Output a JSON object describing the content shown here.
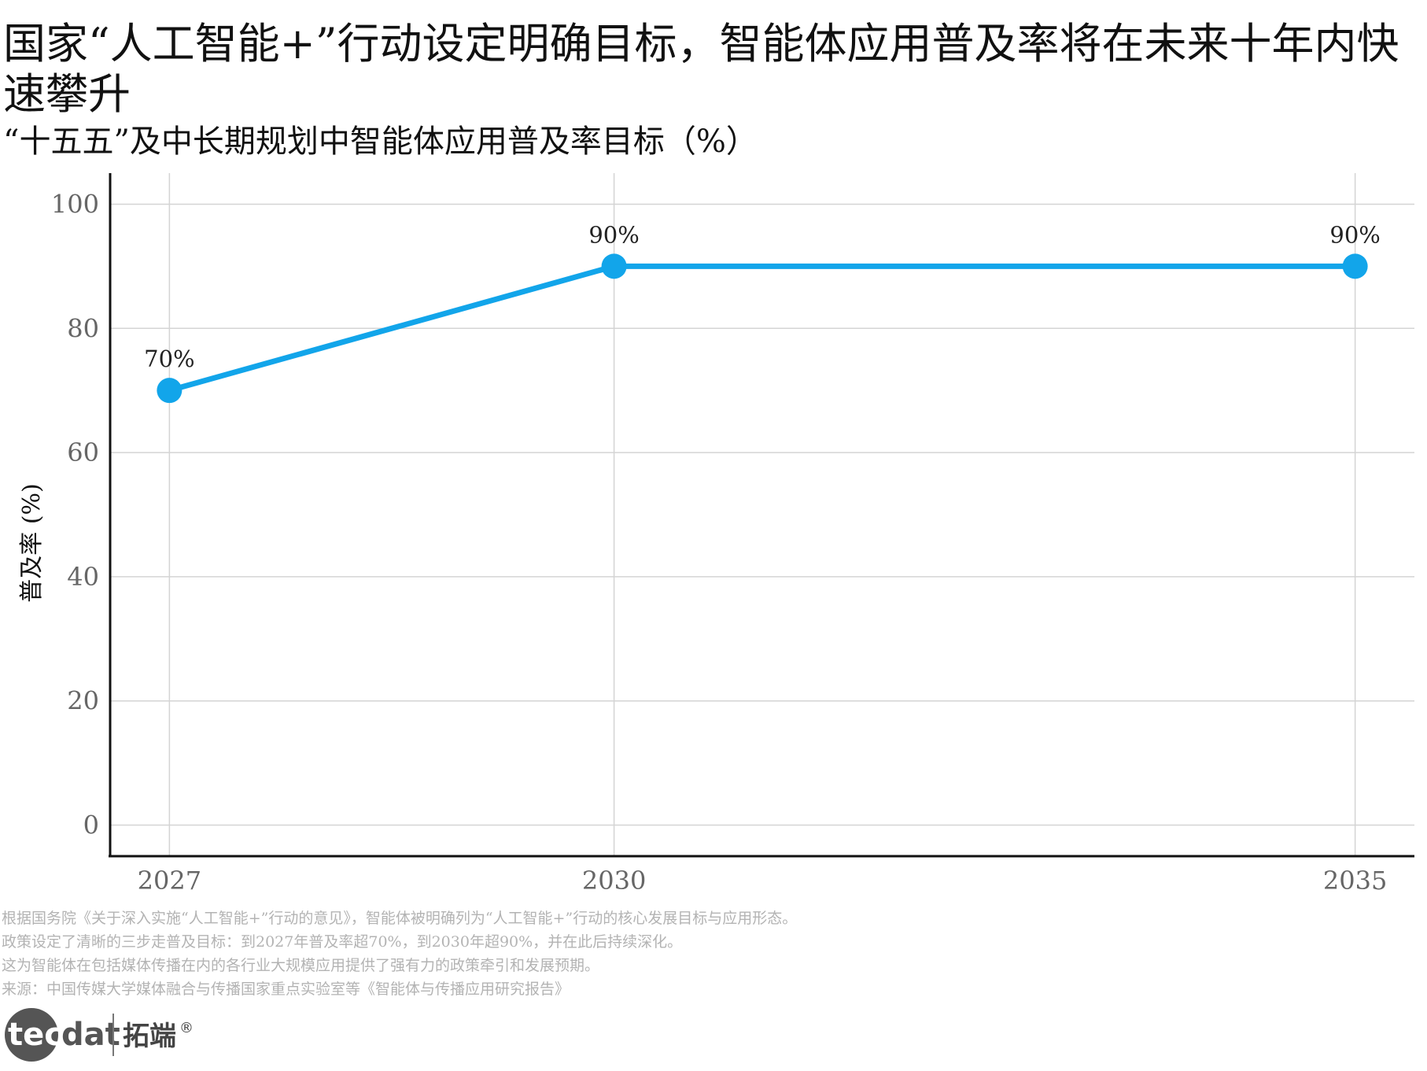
{
  "title": "国家“人工智能+”行动设定明确目标，智能体应用普及率将在未来十年内快速攀升",
  "subtitle": "“十五五”及中长期规划中智能体应用普及率目标（%）",
  "chart_data": {
    "type": "line",
    "title": "“十五五”及中长期规划中智能体应用普及率目标（%）",
    "xlabel": "",
    "ylabel": "普及率 (%)",
    "x": [
      "2027",
      "2030",
      "2035"
    ],
    "x_numeric": [
      2027,
      2030,
      2035
    ],
    "xlim": [
      2026.6,
      2035.4
    ],
    "series": [
      {
        "values": [
          70,
          90,
          90
        ],
        "labels": [
          "70%",
          "90%",
          "90%"
        ],
        "color": "#12a5ea"
      }
    ],
    "ylim": [
      -5,
      105
    ],
    "yticks": [
      "0",
      "20",
      "40",
      "60",
      "80",
      "100"
    ],
    "ytick_values": [
      0,
      20,
      40,
      60,
      80,
      100
    ],
    "grid": true,
    "legend": "none"
  },
  "notes": [
    "根据国务院《关于深入实施“人工智能+”行动的意见》，智能体被明确列为“人工智能+”行动的核心发展目标与应用形态。",
    "政策设定了清晰的三步走普及目标：到2027年普及率超70%，到2030年超90%，并在此后持续深化。",
    "这为智能体在包括媒体传播在内的各行业大规模应用提供了强有力的政策牵引和发展预期。",
    "来源：中国传媒大学媒体融合与传播国家重点实验室等《智能体与传播应用研究报告》"
  ],
  "logo": {
    "brand_en": "tecdat",
    "brand_cn": "拓端",
    "registered": "®",
    "color": "#555555"
  }
}
